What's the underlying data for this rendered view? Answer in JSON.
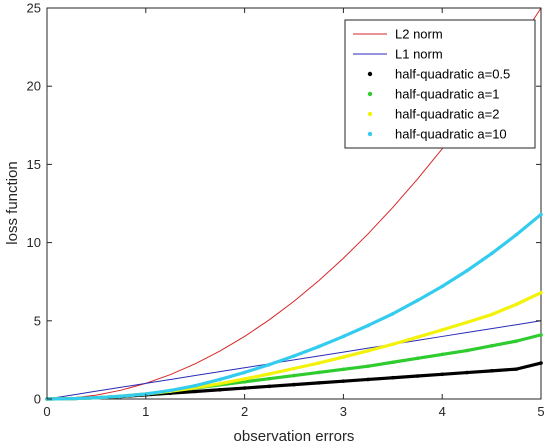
{
  "chart_data": {
    "type": "line",
    "title": "",
    "xlabel": "observation errors",
    "ylabel": "loss function",
    "xlim": [
      0,
      5
    ],
    "ylim": [
      0,
      25
    ],
    "xticks": [
      "0",
      "1",
      "2",
      "3",
      "4",
      "5"
    ],
    "yticks": [
      "0",
      "5",
      "10",
      "15",
      "20",
      "25"
    ],
    "grid": false,
    "legend_position": "top-right",
    "x": [
      0,
      0.25,
      0.5,
      0.75,
      1,
      1.25,
      1.5,
      1.75,
      2,
      2.25,
      2.5,
      2.75,
      3,
      3.25,
      3.5,
      3.75,
      4,
      4.25,
      4.5,
      4.75,
      5
    ],
    "series": [
      {
        "name": "L2 norm",
        "color": "#d62728",
        "style": "thin-line",
        "values": [
          0,
          0.0625,
          0.25,
          0.5625,
          1,
          1.5625,
          2.25,
          3.0625,
          4,
          5.0625,
          6.25,
          7.5625,
          9,
          10.5625,
          12.25,
          14.0625,
          16,
          18.0625,
          20.25,
          22.5625,
          25
        ]
      },
      {
        "name": "L1 norm",
        "color": "#2a2ab8",
        "style": "thin-line",
        "values": [
          0,
          0.25,
          0.5,
          0.75,
          1,
          1.25,
          1.5,
          1.75,
          2,
          2.25,
          2.5,
          2.75,
          3,
          3.25,
          3.5,
          3.75,
          4,
          4.25,
          4.5,
          4.75,
          5
        ]
      },
      {
        "name": "half-quadratic a=0.5",
        "color": "#000000",
        "style": "dots",
        "values": [
          0,
          0.02,
          0.08,
          0.16,
          0.26,
          0.37,
          0.48,
          0.59,
          0.7,
          0.81,
          0.92,
          1.03,
          1.14,
          1.25,
          1.36,
          1.47,
          1.58,
          1.69,
          1.8,
          1.91,
          2.3
        ]
      },
      {
        "name": "half-quadratic a=1",
        "color": "#2ecc2e",
        "style": "dots",
        "values": [
          0,
          0.02,
          0.08,
          0.18,
          0.32,
          0.5,
          0.7,
          0.9,
          1.1,
          1.3,
          1.5,
          1.7,
          1.9,
          2.1,
          2.35,
          2.6,
          2.85,
          3.1,
          3.4,
          3.7,
          4.1
        ]
      },
      {
        "name": "half-quadratic a=2",
        "color": "#f2f20a",
        "style": "dots",
        "values": [
          0,
          0.02,
          0.08,
          0.18,
          0.32,
          0.5,
          0.72,
          0.98,
          1.28,
          1.6,
          1.95,
          2.3,
          2.68,
          3.08,
          3.5,
          3.95,
          4.42,
          4.9,
          5.4,
          6.05,
          6.8
        ]
      },
      {
        "name": "half-quadratic a=10",
        "color": "#33ccee",
        "style": "dots",
        "values": [
          0,
          0.02,
          0.08,
          0.18,
          0.32,
          0.55,
          0.85,
          1.25,
          1.7,
          2.2,
          2.75,
          3.35,
          4.0,
          4.7,
          5.45,
          6.3,
          7.2,
          8.2,
          9.3,
          10.5,
          11.8
        ]
      }
    ]
  }
}
